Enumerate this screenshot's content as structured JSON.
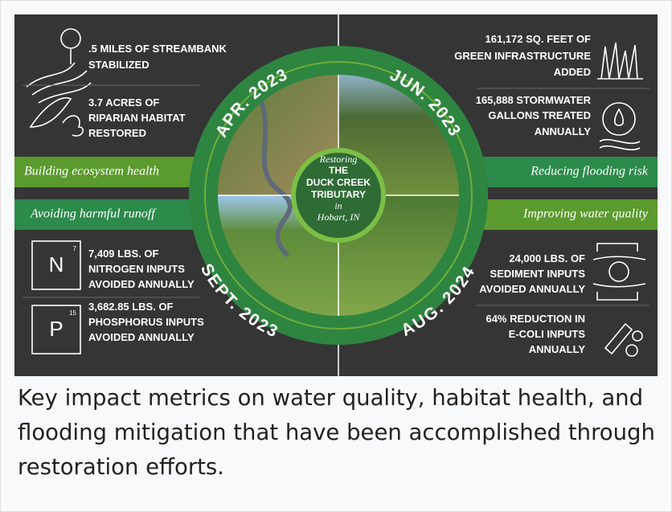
{
  "infographic": {
    "banners": [
      "Building ecosystem health",
      "Reducing flooding risk",
      "Avoiding harmful runoff",
      "Improving water quality"
    ],
    "dates": [
      "APR. 2023",
      "JUN. 2023",
      "SEPT. 2023",
      "AUG. 2024"
    ],
    "center": [
      "Restoring",
      "THE",
      "DUCK CREEK",
      "TRIBUTARY",
      "in",
      "Hobart, IN"
    ],
    "left_top": [
      {
        "lines": [
          ".5 MILES OF STREAMBANK",
          "STABILIZED"
        ]
      },
      {
        "lines": [
          "3.7 ACRES OF",
          "RIPARIAN HABITAT",
          "RESTORED"
        ]
      }
    ],
    "right_top": [
      {
        "lines": [
          "161,172 SQ. FEET OF",
          "GREEN INFRASTRUCTURE",
          "ADDED"
        ]
      },
      {
        "lines": [
          "165,888  STORMWATER",
          "GALLONS TREATED",
          "ANNUALLY"
        ]
      }
    ],
    "left_bottom": [
      {
        "lines": [
          "7,409 LBS. OF",
          "NITROGEN INPUTS",
          "AVOIDED ANNUALLY"
        ]
      },
      {
        "lines": [
          "3,682.85 LBS. OF",
          "PHOSPHORUS INPUTS",
          "AVOIDED ANNUALLY"
        ]
      }
    ],
    "right_bottom": [
      {
        "lines": [
          "24,000 LBS. OF",
          "SEDIMENT INPUTS",
          "AVOIDED ANNUALLY"
        ]
      },
      {
        "lines": [
          "64% REDUCTION IN",
          "E-COLI INPUTS",
          "ANNUALLY"
        ]
      }
    ],
    "elements": [
      {
        "symbol": "N",
        "number": 7
      },
      {
        "symbol": "P",
        "number": 15
      }
    ]
  },
  "caption": "Key impact metrics on water quality, habitat health, and flooding mitigation that have been accomplished through restoration efforts."
}
